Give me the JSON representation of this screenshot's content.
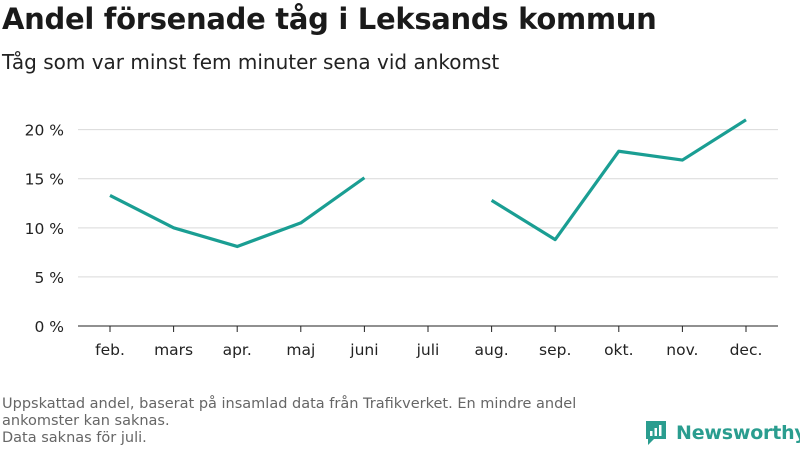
{
  "title": "Andel försenade tåg i Leksands kommun",
  "subtitle": "Tåg som var minst fem minuter sena vid ankomst",
  "footer": {
    "line1": "Uppskattad andel, baserat på insamlad data från Trafikverket. En mindre andel ankomster kan saknas.",
    "line2": "Data saknas för juli."
  },
  "logo": {
    "text": "Newsworthy"
  },
  "colors": {
    "line": "#1a9e93",
    "grid": "#d9d9d9",
    "axis": "#222222"
  },
  "chart_data": {
    "type": "line",
    "categories": [
      "feb.",
      "mars",
      "apr.",
      "maj",
      "juni",
      "juli",
      "aug.",
      "sep.",
      "okt.",
      "nov.",
      "dec."
    ],
    "series": [
      {
        "values": [
          13.3,
          10.0,
          8.1,
          10.5,
          15.1,
          null,
          12.8,
          8.8,
          17.8,
          16.9,
          21.0
        ]
      }
    ],
    "y_ticks": [
      0,
      5,
      10,
      15,
      20
    ],
    "y_tick_labels": [
      "0 %",
      "5 %",
      "10 %",
      "15 %",
      "20 %"
    ],
    "ylim": [
      0,
      22
    ],
    "grid": true,
    "xlabel": "",
    "ylabel": ""
  }
}
